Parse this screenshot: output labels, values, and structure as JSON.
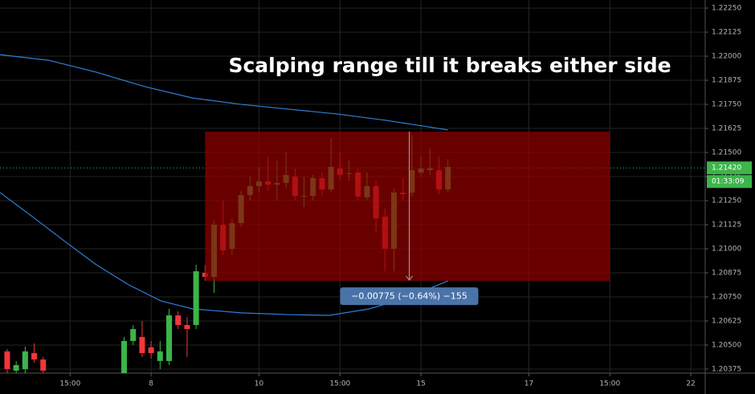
{
  "chart_data": {
    "type": "candlestick",
    "annotation": "Scalping range till it breaks either side",
    "up_color": "#3cb54a",
    "down_color": "#f2363c",
    "x": [
      0,
      1,
      2,
      3,
      4,
      13,
      14,
      15,
      16,
      17,
      18,
      19,
      20,
      21,
      22,
      23,
      24,
      25,
      26,
      27,
      28,
      29,
      30,
      31,
      32,
      33,
      34,
      35,
      36,
      37,
      38,
      39,
      40,
      41,
      42,
      43,
      44,
      45,
      46,
      47,
      48,
      49
    ],
    "open": [
      1.20467,
      1.20367,
      1.20375,
      1.20458,
      1.20425,
      1.20354,
      1.20521,
      1.20542,
      1.20488,
      1.20417,
      1.20417,
      1.20654,
      1.20604,
      1.20604,
      1.20875,
      1.20854,
      1.21125,
      1.21,
      1.21133,
      1.21279,
      1.21325,
      1.2135,
      1.21333,
      1.21342,
      1.21375,
      1.21275,
      1.21275,
      1.21367,
      1.21308,
      1.21417,
      1.21392,
      1.21396,
      1.21267,
      1.21325,
      1.21167,
      1.21,
      1.21292,
      1.21292,
      1.21396,
      1.21408,
      1.21408,
      1.21308
    ],
    "high": [
      1.20479,
      1.20417,
      1.20492,
      1.20508,
      1.20438,
      1.20542,
      1.20604,
      1.20625,
      1.20521,
      1.20521,
      1.20688,
      1.20675,
      1.20646,
      1.20917,
      1.20917,
      1.21146,
      1.2125,
      1.21158,
      1.213,
      1.21375,
      1.21425,
      1.21479,
      1.21458,
      1.215,
      1.21417,
      1.21375,
      1.21383,
      1.21396,
      1.21575,
      1.215,
      1.21458,
      1.21417,
      1.21396,
      1.21354,
      1.21208,
      1.21313,
      1.21367,
      1.21592,
      1.21479,
      1.21521,
      1.21479,
      1.21467
    ],
    "low": [
      1.20354,
      1.20354,
      1.20354,
      1.20408,
      1.20354,
      1.20354,
      1.205,
      1.20438,
      1.20429,
      1.20375,
      1.20396,
      1.20583,
      1.20438,
      1.20583,
      1.20833,
      1.20771,
      1.20967,
      1.20967,
      1.21113,
      1.2125,
      1.21292,
      1.213,
      1.2125,
      1.21313,
      1.2125,
      1.21217,
      1.2125,
      1.21271,
      1.21292,
      1.21354,
      1.21354,
      1.2125,
      1.2125,
      1.21083,
      1.20883,
      1.20883,
      1.2125,
      1.21271,
      1.21375,
      1.21383,
      1.21283,
      1.21292
    ],
    "close": [
      1.20375,
      1.20396,
      1.20467,
      1.20425,
      1.20367,
      1.20521,
      1.20583,
      1.20458,
      1.20458,
      1.20467,
      1.20654,
      1.20604,
      1.20583,
      1.20883,
      1.20854,
      1.21125,
      1.20992,
      1.21133,
      1.21279,
      1.21325,
      1.2135,
      1.21333,
      1.21342,
      1.21383,
      1.21275,
      1.21275,
      1.21367,
      1.21308,
      1.21425,
      1.21383,
      1.21392,
      1.21271,
      1.21325,
      1.21158,
      1.21,
      1.21292,
      1.21283,
      1.21408,
      1.21417,
      1.21417,
      1.21308,
      1.21425
    ],
    "lines": [
      {
        "color": "#2f7fd8",
        "x": [
          -0.8,
          4.6,
          9.9,
          15.3,
          20.6,
          26,
          31.3,
          36.7,
          42.1,
          45.6,
          49
        ],
        "values": [
          1.22008,
          1.21979,
          1.21917,
          1.21842,
          1.21783,
          1.2175,
          1.21725,
          1.217,
          1.21667,
          1.21642,
          1.21617
        ]
      },
      {
        "color": "#2f7fd8",
        "x": [
          -0.8,
          2.8,
          6.3,
          9.9,
          13.5,
          17.1,
          20.6,
          26,
          31.3,
          35.8,
          40.3,
          44.7,
          49
        ],
        "values": [
          1.21292,
          1.21167,
          1.21042,
          1.20917,
          1.20813,
          1.20729,
          1.20688,
          1.20667,
          1.20658,
          1.20654,
          1.20688,
          1.2075,
          1.20833
        ]
      }
    ],
    "range_box": {
      "x": [
        22,
        67
      ],
      "y": [
        1.21608,
        1.20833
      ],
      "color": "#960000"
    },
    "measure": {
      "x": 44.7,
      "label": "−0.00775 (−0.64%) −155"
    },
    "current_price": {
      "value": 1.2142,
      "label": "1.21420"
    },
    "countdown": "01:33:09",
    "xlim": [
      -0.8,
      77.6
    ],
    "ylim": [
      1.20354,
      1.22292
    ],
    "xticks": [
      {
        "value": 7,
        "label": "15:00"
      },
      {
        "value": 16,
        "label": "8"
      },
      {
        "value": 28,
        "label": "10"
      },
      {
        "value": 37,
        "label": "15:00"
      },
      {
        "value": 46,
        "label": "15"
      },
      {
        "value": 58,
        "label": "17"
      },
      {
        "value": 67,
        "label": "15:00"
      },
      {
        "value": 76,
        "label": "22"
      }
    ],
    "yticks": [
      {
        "value": 1.2225,
        "label": "1.22250"
      },
      {
        "value": 1.22125,
        "label": "1.22125"
      },
      {
        "value": 1.22,
        "label": "1.22000"
      },
      {
        "value": 1.21875,
        "label": "1.21875"
      },
      {
        "value": 1.2175,
        "label": "1.21750"
      },
      {
        "value": 1.21625,
        "label": "1.21625"
      },
      {
        "value": 1.215,
        "label": "1.21500"
      },
      {
        "value": 1.21375,
        "label": "1.21375"
      },
      {
        "value": 1.2125,
        "label": "1.21250"
      },
      {
        "value": 1.21125,
        "label": "1.21125"
      },
      {
        "value": 1.21,
        "label": "1.21000"
      },
      {
        "value": 1.20875,
        "label": "1.20875"
      },
      {
        "value": 1.2075,
        "label": "1.20750"
      },
      {
        "value": 1.20625,
        "label": "1.20625"
      },
      {
        "value": 1.205,
        "label": "1.20500"
      },
      {
        "value": 1.20375,
        "label": "1.20375"
      }
    ],
    "grid": true
  }
}
